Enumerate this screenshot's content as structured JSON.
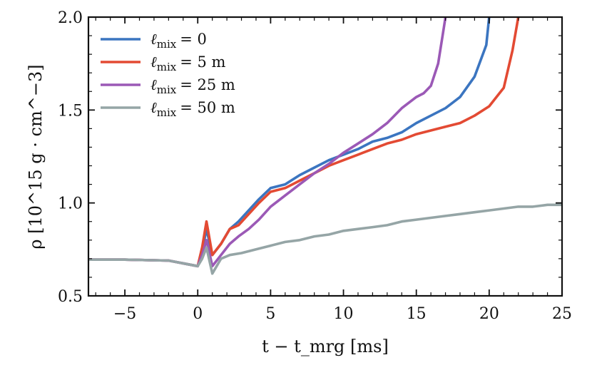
{
  "chart_data": {
    "type": "line",
    "xlabel": "t − t_mrg [ms]",
    "ylabel": "ρ [10^15 g · cm^−3]",
    "xlim": [
      -7.5,
      25
    ],
    "ylim": [
      0.5,
      2.0
    ],
    "xticks": [
      -5,
      0,
      5,
      10,
      15,
      20,
      25
    ],
    "yticks": [
      0.5,
      1.0,
      1.5,
      2.0
    ],
    "xtick_labels": [
      "−5",
      "0",
      "5",
      "10",
      "15",
      "20",
      "25"
    ],
    "ytick_labels": [
      "0.5",
      "1.0",
      "1.5",
      "2.0"
    ],
    "legend_position": "top-left",
    "grid": false,
    "series": [
      {
        "name": "ℓmix = 0",
        "legend_symbol": "ℓ",
        "legend_sub": "mix",
        "legend_value": "=   0",
        "color": "#3b75c0",
        "x": [
          -7.5,
          -5,
          -2,
          0,
          0.3,
          0.6,
          1.0,
          1.6,
          2.2,
          2.8,
          3.5,
          4.2,
          5,
          6,
          7,
          8,
          9,
          10,
          11,
          12,
          13,
          14,
          15,
          16,
          17,
          18,
          19,
          19.8,
          20.0
        ],
        "y": [
          0.695,
          0.695,
          0.69,
          0.66,
          0.74,
          0.86,
          0.72,
          0.78,
          0.86,
          0.9,
          0.96,
          1.02,
          1.08,
          1.1,
          1.15,
          1.19,
          1.23,
          1.26,
          1.29,
          1.33,
          1.35,
          1.38,
          1.43,
          1.47,
          1.51,
          1.57,
          1.68,
          1.85,
          2.0
        ]
      },
      {
        "name": "ℓmix = 5 m",
        "legend_symbol": "ℓ",
        "legend_sub": "mix",
        "legend_value": "=   5 m",
        "color": "#e34a33",
        "x": [
          -7.5,
          -5,
          -2,
          0,
          0.3,
          0.6,
          1.0,
          1.6,
          2.2,
          2.8,
          3.5,
          4.2,
          5,
          6,
          7,
          8,
          9,
          10,
          11,
          12,
          13,
          14,
          15,
          16,
          17,
          18,
          19,
          20,
          21,
          21.6,
          22.0
        ],
        "y": [
          0.695,
          0.695,
          0.69,
          0.66,
          0.76,
          0.9,
          0.72,
          0.78,
          0.86,
          0.88,
          0.94,
          1.0,
          1.06,
          1.08,
          1.12,
          1.16,
          1.2,
          1.23,
          1.26,
          1.29,
          1.32,
          1.34,
          1.37,
          1.39,
          1.41,
          1.43,
          1.47,
          1.52,
          1.62,
          1.82,
          2.0
        ]
      },
      {
        "name": "ℓmix = 25 m",
        "legend_symbol": "ℓ",
        "legend_sub": "mix",
        "legend_value": "= 25 m",
        "color": "#9b59b6",
        "x": [
          -7.5,
          -5,
          -2,
          0,
          0.3,
          0.6,
          1.0,
          1.6,
          2.2,
          2.8,
          3.5,
          4.2,
          5,
          6,
          7,
          8,
          9,
          10,
          11,
          12,
          13,
          14,
          15,
          15.5,
          16,
          16.5,
          16.8,
          17.0
        ],
        "y": [
          0.695,
          0.695,
          0.69,
          0.66,
          0.72,
          0.8,
          0.66,
          0.72,
          0.78,
          0.82,
          0.86,
          0.91,
          0.98,
          1.04,
          1.1,
          1.16,
          1.21,
          1.27,
          1.32,
          1.37,
          1.43,
          1.51,
          1.57,
          1.59,
          1.63,
          1.75,
          1.9,
          2.0
        ]
      },
      {
        "name": "ℓmix = 50 m",
        "legend_symbol": "ℓ",
        "legend_sub": "mix",
        "legend_value": "= 50 m",
        "color": "#95a5a6",
        "x": [
          -7.5,
          -5,
          -2,
          0,
          0.3,
          0.6,
          1.0,
          1.6,
          2.2,
          3,
          4,
          5,
          6,
          7,
          8,
          9,
          10,
          11,
          12,
          13,
          14,
          15,
          16,
          17,
          18,
          19,
          20,
          21,
          22,
          23,
          24,
          25
        ],
        "y": [
          0.695,
          0.695,
          0.69,
          0.66,
          0.7,
          0.76,
          0.62,
          0.7,
          0.72,
          0.73,
          0.75,
          0.77,
          0.79,
          0.8,
          0.82,
          0.83,
          0.85,
          0.86,
          0.87,
          0.88,
          0.9,
          0.91,
          0.92,
          0.93,
          0.94,
          0.95,
          0.96,
          0.97,
          0.98,
          0.98,
          0.99,
          0.99
        ]
      }
    ]
  }
}
